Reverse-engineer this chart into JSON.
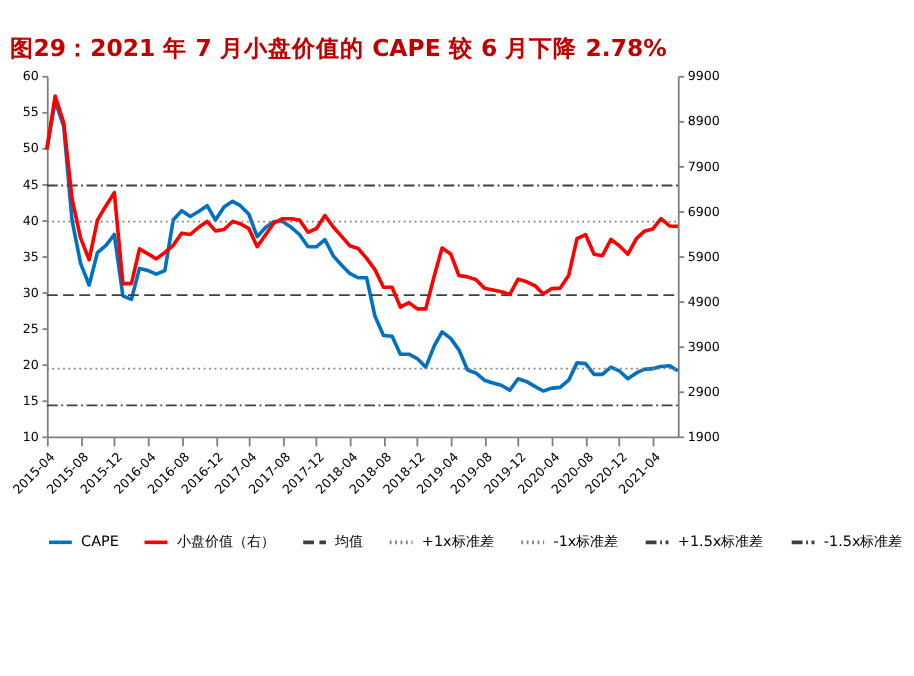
{
  "chart_data": {
    "type": "line",
    "title": "图29：2021 年 7 月小盘价值的 CAPE 较 6 月下降 2.78%",
    "x": [
      "2015-04",
      "2015-05",
      "2015-06",
      "2015-07",
      "2015-08",
      "2015-09",
      "2015-10",
      "2015-11",
      "2015-12",
      "2016-01",
      "2016-02",
      "2016-03",
      "2016-04",
      "2016-05",
      "2016-06",
      "2016-07",
      "2016-08",
      "2016-09",
      "2016-10",
      "2016-11",
      "2016-12",
      "2017-01",
      "2017-02",
      "2017-03",
      "2017-04",
      "2017-05",
      "2017-06",
      "2017-07",
      "2017-08",
      "2017-09",
      "2017-10",
      "2017-11",
      "2017-12",
      "2018-01",
      "2018-02",
      "2018-03",
      "2018-04",
      "2018-05",
      "2018-06",
      "2018-07",
      "2018-08",
      "2018-09",
      "2018-10",
      "2018-11",
      "2018-12",
      "2019-01",
      "2019-02",
      "2019-03",
      "2019-04",
      "2019-05",
      "2019-06",
      "2019-07",
      "2019-08",
      "2019-09",
      "2019-10",
      "2019-11",
      "2019-12",
      "2020-01",
      "2020-02",
      "2020-03",
      "2020-04",
      "2020-05",
      "2020-06",
      "2020-07",
      "2020-08",
      "2020-09",
      "2020-10",
      "2020-11",
      "2020-12",
      "2021-01",
      "2021-02",
      "2021-03",
      "2021-04",
      "2021-05",
      "2021-06",
      "2021-07"
    ],
    "series": [
      {
        "name": "CAPE",
        "color": "#0070c0",
        "line_style": "solid",
        "values": [
          49.8,
          56.5,
          53,
          40,
          34,
          31,
          35.5,
          36.5,
          38,
          29.5,
          29,
          33.3,
          33,
          32.5,
          33,
          40,
          41.3,
          40.5,
          41.2,
          42,
          40,
          41.8,
          42.6,
          42,
          40.8,
          37.7,
          39,
          39.8,
          39.8,
          39,
          38,
          36.3,
          36.3,
          37.3,
          35,
          33.8,
          32.6,
          32,
          32,
          26.7,
          24,
          23.9,
          21.4,
          21.4,
          20.8,
          19.6,
          22.6,
          24.5,
          23.6,
          22,
          19.2,
          18.8,
          17.8,
          17.4,
          17.1,
          16.4,
          18,
          17.6,
          16.9,
          16.3,
          16.7,
          16.8,
          17.8,
          20.2,
          20.1,
          18.6,
          18.6,
          19.6,
          19.1,
          18,
          18.8,
          19.3,
          19.4,
          19.7,
          19.8,
          19.1
        ]
      },
      {
        "name": "小盘价值（右）",
        "color": "#ff0000",
        "line_style": "solid",
        "axis": "y2",
        "values": [
          8270,
          9450,
          8860,
          7180,
          6300,
          5820,
          6700,
          7020,
          7310,
          5290,
          5290,
          6060,
          5950,
          5840,
          5980,
          6140,
          6410,
          6380,
          6540,
          6670,
          6460,
          6490,
          6670,
          6620,
          6510,
          6110,
          6380,
          6640,
          6730,
          6730,
          6700,
          6430,
          6510,
          6800,
          6540,
          6350,
          6130,
          6070,
          5850,
          5600,
          5210,
          5210,
          4770,
          4870,
          4730,
          4730,
          5470,
          6080,
          5950,
          5470,
          5440,
          5380,
          5190,
          5150,
          5110,
          5050,
          5390,
          5330,
          5240,
          5060,
          5180,
          5190,
          5470,
          6290,
          6380,
          5940,
          5910,
          6270,
          6130,
          5940,
          6290,
          6450,
          6500,
          6730,
          6570,
          6560
        ]
      }
    ],
    "ref_lines": [
      {
        "axis": "y",
        "value": 29.6,
        "label": "均值",
        "color": "#404040",
        "line_style": "dashed"
      },
      {
        "axis": "y",
        "value": 39.8,
        "label": "+1x标准差",
        "color": "#808080",
        "line_style": "dotted"
      },
      {
        "axis": "y",
        "value": 19.4,
        "label": "-1x标准差",
        "color": "#808080",
        "line_style": "dotted"
      },
      {
        "axis": "y",
        "value": 44.8,
        "label": "+1.5x标准差",
        "color": "#404040",
        "line_style": "dashdot"
      },
      {
        "axis": "y",
        "value": 14.3,
        "label": "-1.5x标准差",
        "color": "#404040",
        "line_style": "dashdot"
      }
    ],
    "xlim": [
      "2015-04",
      "2021-07"
    ],
    "xticks": [
      "2015-04",
      "2015-08",
      "2015-12",
      "2016-04",
      "2016-08",
      "2016-12",
      "2017-04",
      "2017-08",
      "2017-12",
      "2018-04",
      "2018-08",
      "2018-12",
      "2019-04",
      "2019-08",
      "2019-12",
      "2020-04",
      "2020-08",
      "2020-12",
      "2021-04"
    ],
    "ylim": [
      10,
      60
    ],
    "yticks": [
      10,
      15,
      20,
      25,
      30,
      35,
      40,
      45,
      50,
      55,
      60
    ],
    "y2lim": [
      1900,
      9900
    ],
    "y2ticks": [
      1900,
      2900,
      3900,
      4900,
      5900,
      6900,
      7900,
      8900,
      9900
    ],
    "grid": false,
    "legend": "bottom",
    "marker": "none"
  }
}
